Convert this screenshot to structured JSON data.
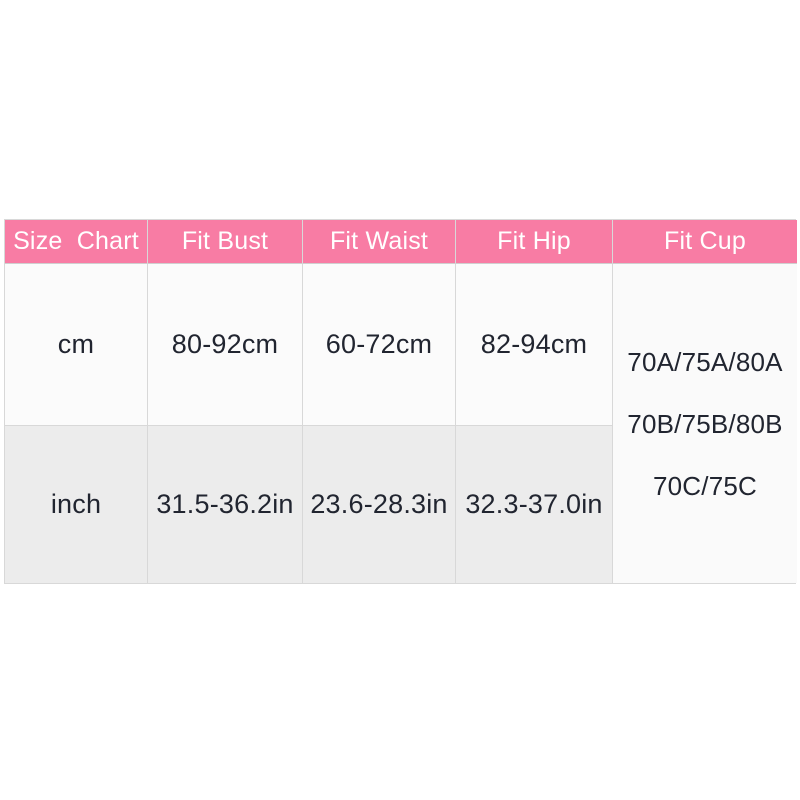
{
  "page": {
    "background": "#ffffff",
    "description_colors": {
      "header_bg": "#f87ca4",
      "header_text": "#ffffff",
      "row_cm_bg": "#fbfbfb",
      "row_inch_bg": "#ececec",
      "fit_cup_bg": "#fafafa",
      "border": "#d8d8d8",
      "body_text": "#212530"
    }
  },
  "size_chart": {
    "headers": [
      "Size  Chart",
      "Fit Bust",
      "Fit Waist",
      "Fit Hip",
      "Fit Cup"
    ],
    "rows": [
      {
        "unit": "cm",
        "bust": "80-92cm",
        "waist": "60-72cm",
        "hip": "82-94cm"
      },
      {
        "unit": "inch",
        "bust": "31.5-36.2in",
        "waist": "23.6-28.3in",
        "hip": "32.3-37.0in"
      }
    ],
    "fit_cup_lines": [
      "70A/75A/80A",
      "70B/75B/80B",
      "70C/75C"
    ]
  },
  "chart_data": {
    "type": "table",
    "title": "Size Chart",
    "columns": [
      "Size Chart",
      "Fit Bust",
      "Fit Waist",
      "Fit Hip",
      "Fit Cup"
    ],
    "rows": [
      [
        "cm",
        "80-92cm",
        "60-72cm",
        "82-94cm",
        "70A/75A/80A, 70B/75B/80B, 70C/75C"
      ],
      [
        "inch",
        "31.5-36.2in",
        "23.6-28.3in",
        "32.3-37.0in",
        "70A/75A/80A, 70B/75B/80B, 70C/75C"
      ]
    ],
    "notes": "Fit Cup cell spans both the cm and inch rows; legend/grid: bordered table, pink header row"
  }
}
